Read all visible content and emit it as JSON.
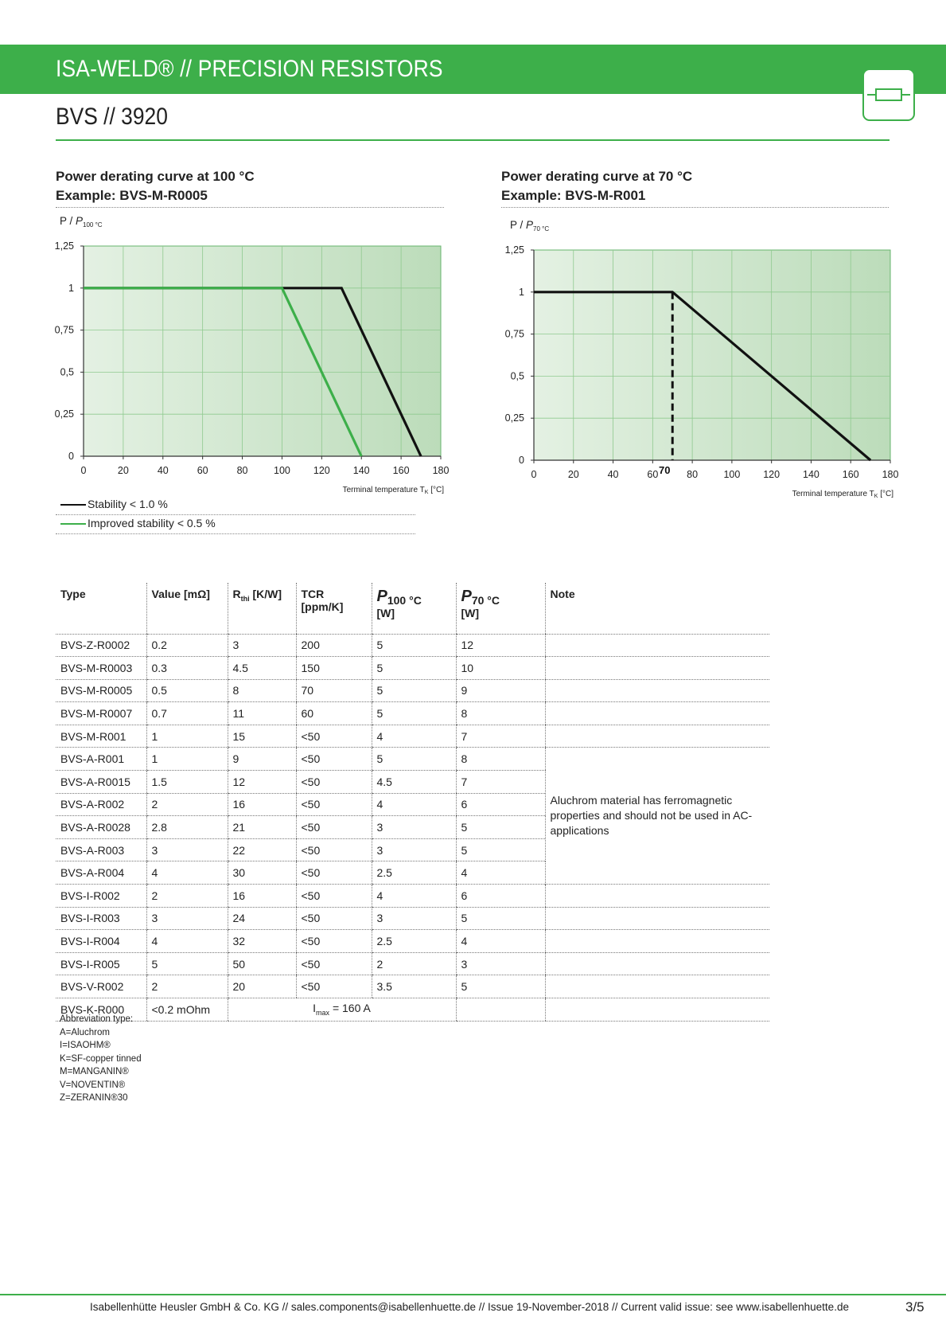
{
  "header": {
    "title": "ISA-WELD® // PRECISION RESISTORS",
    "subtitle": "BVS // 3920"
  },
  "colors": {
    "brand_green": "#3daf4a",
    "plot_bg_light": "#e4f1e3",
    "plot_bg_dark": "#bcdcba"
  },
  "chart_left": {
    "title_line1": "Power derating curve at 100 °C",
    "title_line2": "Example: BVS-M-R0005",
    "ylabel_prefix": "P / ",
    "ylabel_italic": "P",
    "ylabel_sub": "100 °C",
    "xlabel_prefix": "Terminal temperature T",
    "xlabel_sub": "K",
    "xlabel_suffix": " [°C]"
  },
  "chart_right": {
    "title_line1": "Power derating curve at 70 °C",
    "title_line2": "Example: BVS-M-R001",
    "ylabel_prefix": "P / ",
    "ylabel_italic": "P",
    "ylabel_sub": "70 °C",
    "xlabel_prefix": "Terminal temperature T",
    "xlabel_sub": "K",
    "xlabel_suffix": " [°C]"
  },
  "chart_data": [
    {
      "type": "line",
      "title": "Power derating curve at 100 °C",
      "xlabel": "Terminal temperature TK [°C]",
      "ylabel": "P / P100 °C",
      "xlim": [
        0,
        180
      ],
      "ylim": [
        0,
        1.25
      ],
      "x_ticks": [
        0,
        20,
        40,
        60,
        80,
        100,
        120,
        140,
        160,
        180
      ],
      "x_tick_labels": [
        "0",
        "20",
        "40",
        "60",
        "80",
        "100",
        "120",
        "140",
        "160",
        "180"
      ],
      "y_ticks": [
        0,
        0.25,
        0.5,
        0.75,
        1,
        1.25
      ],
      "y_tick_labels": [
        "0",
        "0,25",
        "0,5",
        "0,75",
        "1",
        "1,25"
      ],
      "grid": true,
      "series": [
        {
          "name": "Stability < 1.0 %",
          "color": "#111111",
          "x": [
            0,
            130,
            170
          ],
          "y": [
            1,
            1,
            0
          ]
        },
        {
          "name": "Improved stability < 0.5 %",
          "color": "#3daf4a",
          "x": [
            0,
            100,
            140
          ],
          "y": [
            1,
            1,
            0
          ]
        }
      ]
    },
    {
      "type": "line",
      "title": "Power derating curve at 70 °C",
      "xlabel": "Terminal temperature TK [°C]",
      "ylabel": "P / P70 °C",
      "xlim": [
        0,
        180
      ],
      "ylim": [
        0,
        1.25
      ],
      "x_ticks": [
        0,
        20,
        40,
        60,
        80,
        100,
        120,
        140,
        160,
        180
      ],
      "x_tick_labels": [
        "0",
        "20",
        "40",
        "60",
        "80",
        "100",
        "120",
        "140",
        "160",
        "180"
      ],
      "y_ticks": [
        0,
        0.25,
        0.5,
        0.75,
        1,
        1.25
      ],
      "y_tick_labels": [
        "0",
        "0,25",
        "0,5",
        "0,75",
        "1",
        "1,25"
      ],
      "grid": true,
      "marker_label": "70",
      "marker_x": 70,
      "series": [
        {
          "color": "#111111",
          "x": [
            0,
            70,
            170
          ],
          "y": [
            1,
            1,
            0
          ]
        }
      ]
    }
  ],
  "legend": {
    "items": [
      {
        "label": "Stability < 1.0 %",
        "color": "#111111"
      },
      {
        "label": "Improved stability < 0.5 %",
        "color": "#3daf4a"
      }
    ]
  },
  "table": {
    "headers": {
      "type": "Type",
      "value": "Value [mΩ]",
      "rthi_main": "R",
      "rthi_sub": "thi",
      "rthi_unit": " [K/W]",
      "tcr": "TCR [ppm/K]",
      "p100_main": "P",
      "p100_sub": "100 °C",
      "p100_unit": "[W]",
      "p70_main": "P",
      "p70_sub": "70 °C",
      "p70_unit": "[W]",
      "note": "Note"
    },
    "rows": [
      [
        "BVS-Z-R0002",
        "0.2",
        "3",
        "200",
        "5",
        "12"
      ],
      [
        "BVS-M-R0003",
        "0.3",
        "4.5",
        "150",
        "5",
        "10"
      ],
      [
        "BVS-M-R0005",
        "0.5",
        "8",
        "70",
        "5",
        "9"
      ],
      [
        "BVS-M-R0007",
        "0.7",
        "11",
        "60",
        "5",
        "8"
      ],
      [
        "BVS-M-R001",
        "1",
        "15",
        "<50",
        "4",
        "7"
      ],
      [
        "BVS-A-R001",
        "1",
        "9",
        "<50",
        "5",
        "8"
      ],
      [
        "BVS-A-R0015",
        "1.5",
        "12",
        "<50",
        "4.5",
        "7"
      ],
      [
        "BVS-A-R002",
        "2",
        "16",
        "<50",
        "4",
        "6"
      ],
      [
        "BVS-A-R0028",
        "2.8",
        "21",
        "<50",
        "3",
        "5"
      ],
      [
        "BVS-A-R003",
        "3",
        "22",
        "<50",
        "3",
        "5"
      ],
      [
        "BVS-A-R004",
        "4",
        "30",
        "<50",
        "2.5",
        "4"
      ],
      [
        "BVS-I-R002",
        "2",
        "16",
        "<50",
        "4",
        "6"
      ],
      [
        "BVS-I-R003",
        "3",
        "24",
        "<50",
        "3",
        "5"
      ],
      [
        "BVS-I-R004",
        "4",
        "32",
        "<50",
        "2.5",
        "4"
      ],
      [
        "BVS-I-R005",
        "5",
        "50",
        "<50",
        "2",
        "3"
      ],
      [
        "BVS-V-R002",
        "2",
        "20",
        "<50",
        "3.5",
        "5"
      ]
    ],
    "aluchrom_note": "Aluchrom material has ferromagnetic properties and should not be used in AC-applications",
    "last_row": {
      "type": "BVS-K-R000",
      "value": "<0.2 mOhm",
      "imax_prefix": "I",
      "imax_sub": "max",
      "imax_suffix": " = 160 A"
    }
  },
  "abbreviations": {
    "title": "Abbreviation type:",
    "items": [
      "A=Aluchrom",
      "I=ISAOHM®",
      "K=SF-copper tinned",
      "M=MANGANIN®",
      "V=NOVENTIN®",
      "Z=ZERANIN®30"
    ]
  },
  "footer": {
    "text": "Isabellenhütte Heusler GmbH & Co. KG // sales.components@isabellenhuette.de // Issue 19-November-2018 // Current valid issue: see www.isabellenhuette.de",
    "page": "3/5"
  }
}
